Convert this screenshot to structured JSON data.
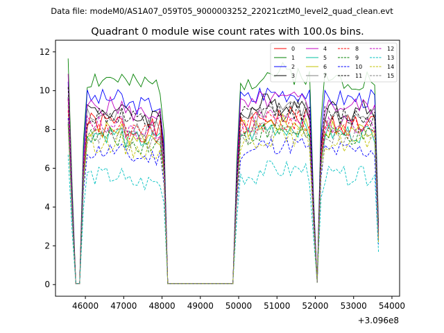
{
  "header": {
    "file_label": "Data file: modeM0/AS1A07_059T05_9000003252_22021cztM0_level2_quad_clean.evt"
  },
  "chart_data": {
    "type": "line",
    "title": "Quadrant 0 module wise count rates with 100.0s bins.",
    "xlabel": "",
    "ylabel": "",
    "offset_label": "+3.096e8",
    "xlim": [
      45220,
      54200
    ],
    "ylim": [
      -0.6,
      12.6
    ],
    "xticks": [
      46000,
      47000,
      48000,
      49000,
      50000,
      51000,
      52000,
      53000,
      54000
    ],
    "xtick_labels": [
      "46000",
      "47000",
      "48000",
      "49000",
      "50000",
      "51000",
      "52000",
      "53000",
      "54000"
    ],
    "yticks": [
      0,
      2,
      4,
      6,
      8,
      10,
      12
    ],
    "ytick_labels": [
      "0",
      "2",
      "4",
      "6",
      "8",
      "10",
      "12"
    ],
    "legend_position": "top-right",
    "segments": [
      {
        "start": 45550,
        "end": 48150,
        "step": 100
      },
      {
        "start": 49850,
        "end": 53650,
        "step": 100
      }
    ],
    "series": [
      {
        "name": "0",
        "color": "#ff0000",
        "dash": "solid",
        "base": 8.3,
        "noise": 0.6,
        "seed": 1
      },
      {
        "name": "1",
        "color": "#008000",
        "dash": "solid",
        "base": 10.6,
        "noise": 0.6,
        "seed": 2
      },
      {
        "name": "2",
        "color": "#0000ff",
        "dash": "solid",
        "base": 9.6,
        "noise": 0.5,
        "seed": 3
      },
      {
        "name": "3",
        "color": "#000000",
        "dash": "solid",
        "base": 9.0,
        "noise": 0.6,
        "seed": 4
      },
      {
        "name": "4",
        "color": "#c000c0",
        "dash": "solid",
        "base": 9.2,
        "noise": 0.5,
        "seed": 5
      },
      {
        "name": "5",
        "color": "#00c0a0",
        "dash": "solid",
        "base": 7.8,
        "noise": 0.5,
        "seed": 6
      },
      {
        "name": "6",
        "color": "#c0c000",
        "dash": "solid",
        "base": 8.0,
        "noise": 0.5,
        "seed": 7
      },
      {
        "name": "7",
        "color": "#808080",
        "dash": "solid",
        "base": 8.6,
        "noise": 0.6,
        "seed": 8
      },
      {
        "name": "8",
        "color": "#ff0000",
        "dash": "dashed",
        "base": 8.1,
        "noise": 0.6,
        "seed": 9
      },
      {
        "name": "9",
        "color": "#008000",
        "dash": "dashed",
        "base": 7.6,
        "noise": 0.5,
        "seed": 10
      },
      {
        "name": "10",
        "color": "#0000ff",
        "dash": "dashed",
        "base": 6.9,
        "noise": 0.5,
        "seed": 11
      },
      {
        "name": "11",
        "color": "#000000",
        "dash": "dashed",
        "base": 8.7,
        "noise": 0.6,
        "seed": 12
      },
      {
        "name": "12",
        "color": "#c000c0",
        "dash": "dashed",
        "base": 8.3,
        "noise": 0.5,
        "seed": 13
      },
      {
        "name": "13",
        "color": "#00c0c0",
        "dash": "dashed",
        "base": 5.6,
        "noise": 0.5,
        "seed": 14
      },
      {
        "name": "14",
        "color": "#c0c000",
        "dash": "dashed",
        "base": 7.3,
        "noise": 0.5,
        "seed": 15
      },
      {
        "name": "15",
        "color": "#808080",
        "dash": "dashed",
        "base": 7.7,
        "noise": 0.5,
        "seed": 16
      }
    ]
  }
}
